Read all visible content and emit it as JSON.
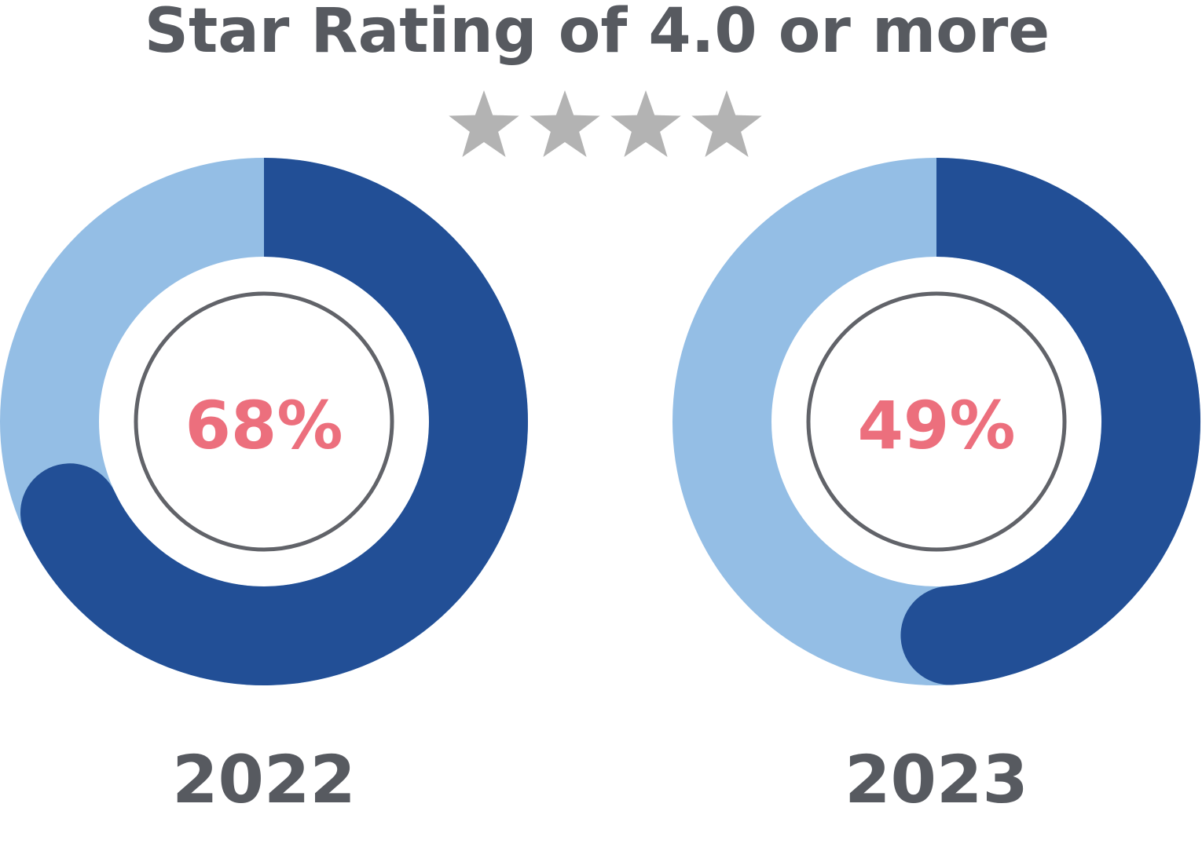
{
  "chart_data": {
    "type": "pie",
    "title": "Star Rating of 4.0 or more",
    "star_count": 4,
    "unit": "%",
    "charts": [
      {
        "label": "2022",
        "value": 68,
        "value_label": "68%"
      },
      {
        "label": "2023",
        "value": 49,
        "value_label": "49%"
      }
    ]
  },
  "colors": {
    "filled": "#224f96",
    "remainder": "#94bee5",
    "percent_text": "#ec6f7d",
    "title_text": "#575a60",
    "inner_ring": "#616369",
    "star": "#b3b3b3"
  },
  "icons": {
    "star": "star-icon"
  }
}
